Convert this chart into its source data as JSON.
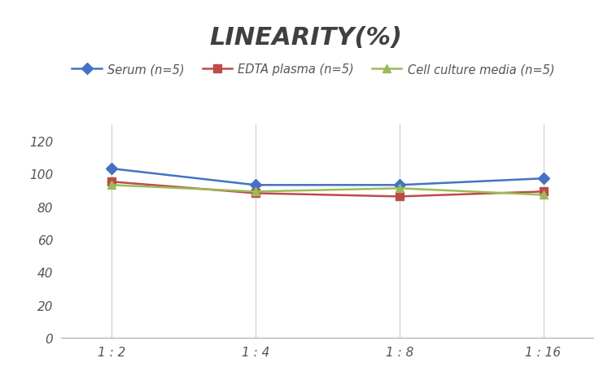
{
  "title": "LINEARITY(%)",
  "x_labels": [
    "1 : 2",
    "1 : 4",
    "1 : 8",
    "1 : 16"
  ],
  "x_positions": [
    0,
    1,
    2,
    3
  ],
  "series": [
    {
      "label": "Serum (n=5)",
      "values": [
        103,
        93,
        93,
        97
      ],
      "color": "#4472C4",
      "marker": "D",
      "markersize": 7,
      "linewidth": 1.8
    },
    {
      "label": "EDTA plasma (n=5)",
      "values": [
        95,
        88,
        86,
        89
      ],
      "color": "#BE4B48",
      "marker": "s",
      "markersize": 7,
      "linewidth": 1.8
    },
    {
      "label": "Cell culture media (n=5)",
      "values": [
        93,
        89,
        91,
        87
      ],
      "color": "#9BBB59",
      "marker": "^",
      "markersize": 7,
      "linewidth": 1.8
    }
  ],
  "ylim": [
    0,
    130
  ],
  "yticks": [
    0,
    20,
    40,
    60,
    80,
    100,
    120
  ],
  "background_color": "#ffffff",
  "title_fontsize": 22,
  "legend_fontsize": 10.5,
  "tick_fontsize": 11,
  "grid_color": "#cccccc",
  "grid_linestyle": "-",
  "grid_linewidth": 0.8
}
